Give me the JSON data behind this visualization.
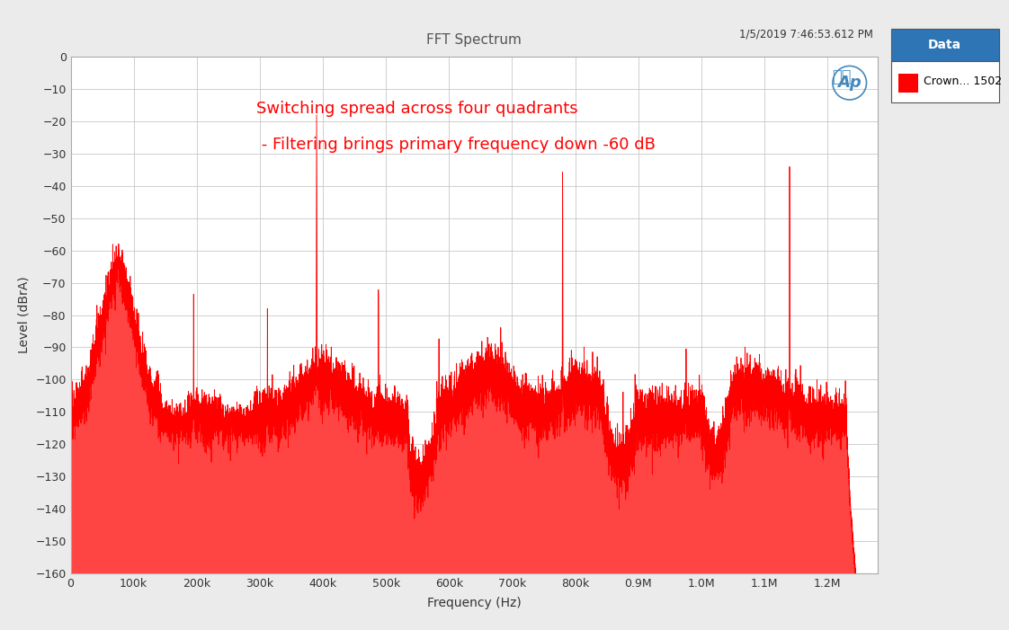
{
  "title": "FFT Spectrum",
  "timestamp": "1/5/2019 7:46:53.612 PM",
  "xlabel": "Frequency (Hz)",
  "ylabel": "Level (dBrA)",
  "annotation_line1": "Switching spread across four quadrants",
  "annotation_line2": " - Filtering brings primary frequency down -60 dB",
  "legend_title": "Data",
  "legend_label": "Crown... 1502",
  "line_color": "#FF0000",
  "fill_color": "#FF4444",
  "bg_color": "#EBEBEB",
  "plot_bg_color": "#FFFFFF",
  "grid_color": "#C8C8C8",
  "xlim": [
    0,
    1280000
  ],
  "ylim": [
    -160,
    0
  ],
  "yticks": [
    0,
    -10,
    -20,
    -30,
    -40,
    -50,
    -60,
    -70,
    -80,
    -90,
    -100,
    -110,
    -120,
    -130,
    -140,
    -150,
    -160
  ],
  "xtick_labels": [
    "0",
    "100k",
    "200k",
    "300k",
    "400k",
    "500k",
    "600k",
    "700k",
    "800k",
    "0.9M",
    "1.0M",
    "1.1M",
    "1.2M"
  ],
  "xtick_positions": [
    0,
    100000,
    200000,
    300000,
    400000,
    500000,
    600000,
    700000,
    800000,
    900000,
    1000000,
    1100000,
    1200000
  ],
  "legend_header_color": "#2E75B6",
  "annotation_color": "#FF0000",
  "title_color": "#555555"
}
